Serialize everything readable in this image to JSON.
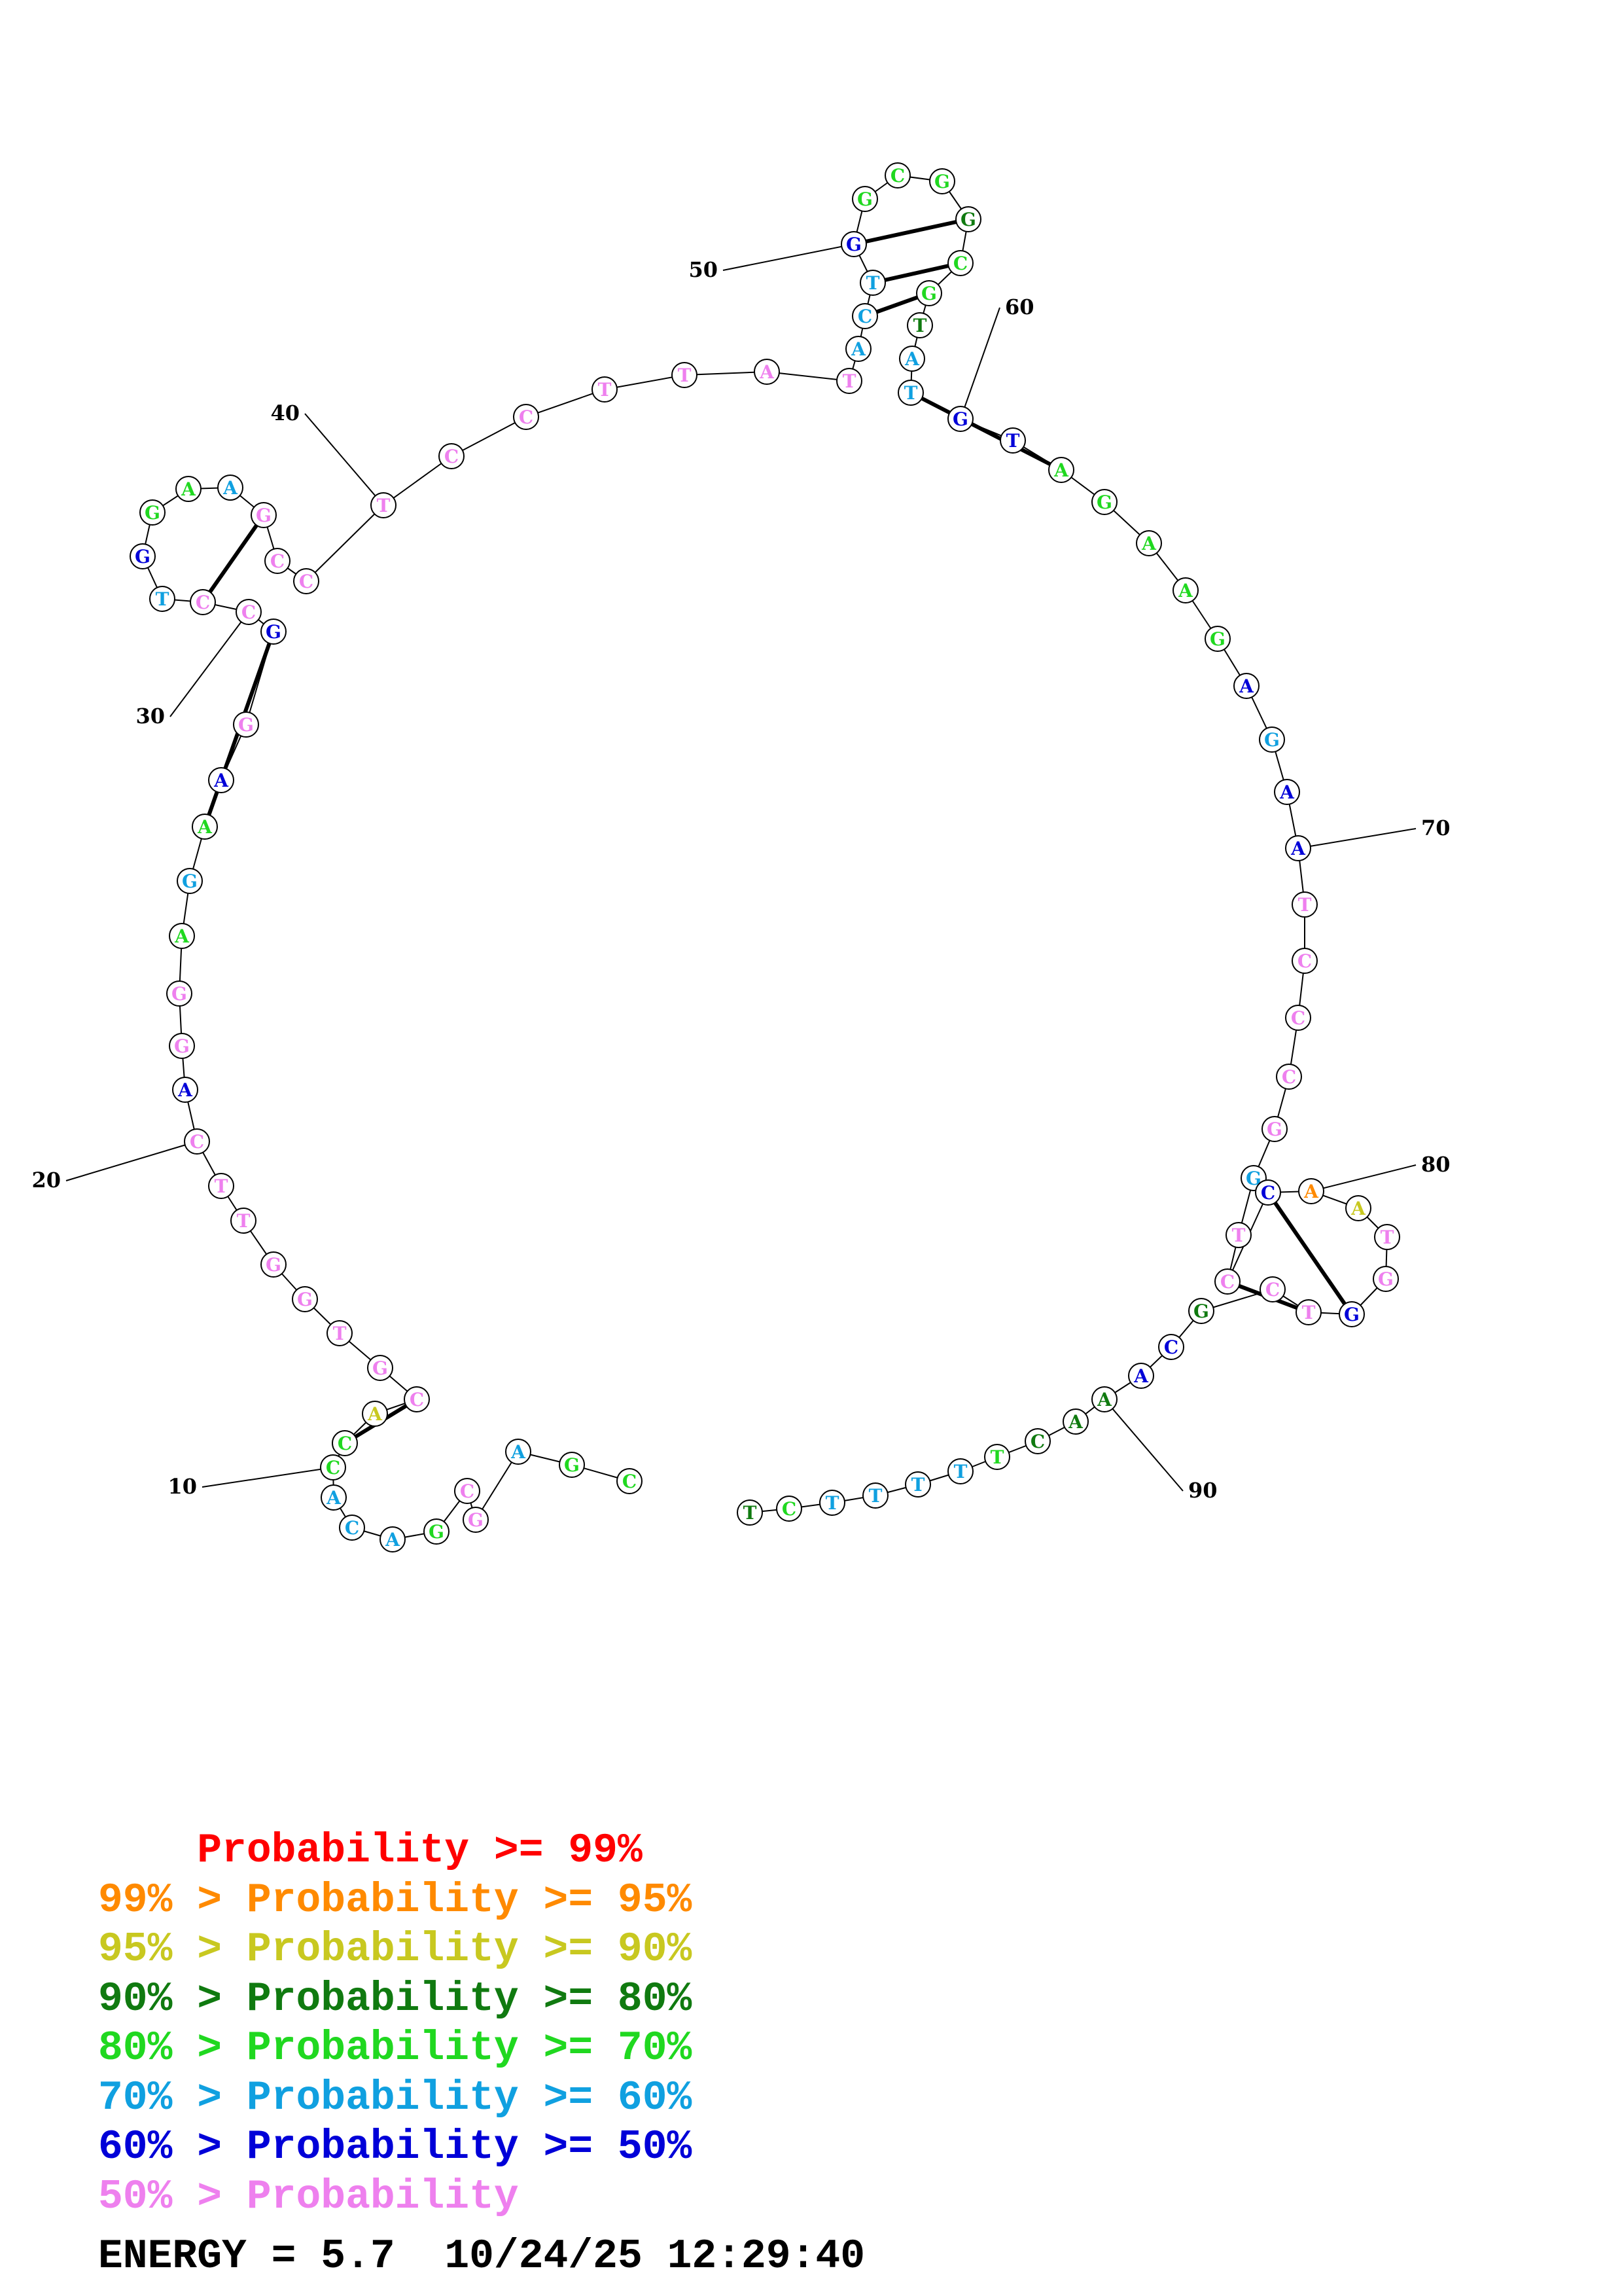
{
  "sequence": "CGAGCGACACCACGTGGTTCAGGAGAAGGCCTGGAAGCCTCCTTATACTGGCGGCGTATGTAGAAGAGAATCCCGGTCCAATGGTCGCAAACTTTTTCT",
  "colors": {
    "pink": "#ee80ee",
    "blue": "#0000d8",
    "cyan": "#10a0e0",
    "green": "#20d820",
    "dgreen": "#107a10",
    "yellow": "#c8c820",
    "orange": "#ff8a00",
    "red": "#ff0000"
  },
  "nucleotide_colors": [
    "green",
    "green",
    "cyan",
    "pink",
    "pink",
    "green",
    "cyan",
    "cyan",
    "cyan",
    "green",
    "green",
    "yellow",
    "pink",
    "pink",
    "pink",
    "pink",
    "pink",
    "pink",
    "pink",
    "pink",
    "blue",
    "pink",
    "pink",
    "green",
    "cyan",
    "green",
    "blue",
    "pink",
    "blue",
    "pink",
    "pink",
    "cyan",
    "blue",
    "green",
    "green",
    "cyan",
    "pink",
    "pink",
    "pink",
    "pink",
    "pink",
    "pink",
    "pink",
    "pink",
    "pink",
    "pink",
    "cyan",
    "cyan",
    "cyan",
    "blue",
    "green",
    "green",
    "green",
    "dgreen",
    "green",
    "green",
    "dgreen",
    "cyan",
    "cyan",
    "blue",
    "blue",
    "green",
    "green",
    "green",
    "green",
    "green",
    "blue",
    "cyan",
    "blue",
    "blue",
    "pink",
    "pink",
    "pink",
    "pink",
    "pink",
    "cyan",
    "pink",
    "pink",
    "blue",
    "orange",
    "yellow",
    "pink",
    "pink",
    "blue",
    "pink",
    "pink",
    "dgreen",
    "blue",
    "blue",
    "dgreen",
    "dgreen",
    "dgreen",
    "green",
    "cyan",
    "cyan",
    "cyan",
    "cyan",
    "green",
    "dgreen"
  ],
  "base_pairs": [
    [
      10,
      12
    ],
    [
      25,
      28
    ],
    [
      30,
      36
    ],
    [
      47,
      55
    ],
    [
      48,
      54
    ],
    [
      49,
      53
    ],
    [
      58,
      61
    ],
    [
      77,
      84
    ],
    [
      78,
      83
    ]
  ],
  "position_labels": [
    {
      "index": 10,
      "text": "10"
    },
    {
      "index": 20,
      "text": "20"
    },
    {
      "index": 30,
      "text": "30"
    },
    {
      "index": 40,
      "text": "40"
    },
    {
      "index": 50,
      "text": "50"
    },
    {
      "index": 60,
      "text": "60"
    },
    {
      "index": 70,
      "text": "70"
    },
    {
      "index": 80,
      "text": "80"
    },
    {
      "index": 90,
      "text": "90"
    }
  ],
  "legend": [
    {
      "prefix": "    ",
      "label": "Probability >= 99%",
      "color": "#ff0000"
    },
    {
      "prefix": "99% > ",
      "label": "Probability >= 95%",
      "color": "#ff8a00"
    },
    {
      "prefix": "95% > ",
      "label": "Probability >= 90%",
      "color": "#c8c820"
    },
    {
      "prefix": "90% > ",
      "label": "Probability >= 80%",
      "color": "#107a10"
    },
    {
      "prefix": "80% > ",
      "label": "Probability >= 70%",
      "color": "#20d820"
    },
    {
      "prefix": "70% > ",
      "label": "Probability >= 60%",
      "color": "#10a0e0"
    },
    {
      "prefix": "60% > ",
      "label": "Probability >= 50%",
      "color": "#0000d8"
    },
    {
      "prefix": "50% > ",
      "label": "Probability",
      "color": "#ee80ee"
    }
  ],
  "energy": {
    "label": "ENERGY = ",
    "value": "5.7",
    "date": "10/24/25",
    "time": "12:29:40"
  }
}
